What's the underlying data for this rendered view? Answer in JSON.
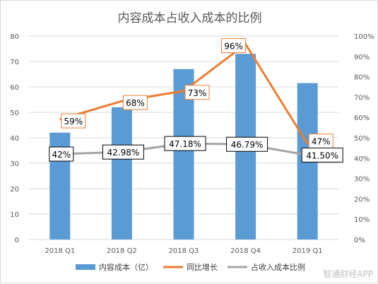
{
  "chart_data": {
    "type": "bar",
    "title": "内容成本占收入成本的比例",
    "categories": [
      "2018 Q1",
      "2018 Q2",
      "2018 Q3",
      "2018 Q4",
      "2019 Q1"
    ],
    "y_left": {
      "ticks": [
        "0",
        "10",
        "20",
        "30",
        "40",
        "50",
        "60",
        "70",
        "80"
      ],
      "ylim": [
        0,
        80
      ]
    },
    "y_right": {
      "ticks": [
        "0%",
        "10%",
        "20%",
        "30%",
        "40%",
        "50%",
        "60%",
        "70%",
        "80%",
        "90%",
        "100%"
      ],
      "ylim": [
        0,
        100
      ]
    },
    "series": [
      {
        "name": "内容成本（亿）",
        "type": "bar",
        "axis": "left",
        "color": "#5b9bd5",
        "values": [
          42,
          52,
          67,
          73,
          61.5
        ]
      },
      {
        "name": "同比增长",
        "type": "line",
        "axis": "right",
        "color": "#ed7d31",
        "values": [
          59,
          68,
          73,
          96,
          47
        ],
        "labels": [
          "59%",
          "68%",
          "73%",
          "96%",
          "47%"
        ]
      },
      {
        "name": "占收入成本比例",
        "type": "line",
        "axis": "right",
        "color": "#a5a5a5",
        "values": [
          42,
          42.98,
          47.18,
          46.79,
          41.5
        ],
        "labels": [
          "42%",
          "42.98%",
          "47.18%",
          "46.79%",
          "41.50%"
        ]
      }
    ],
    "legend_position": "bottom",
    "grid": true
  },
  "watermark": "智通财经APP"
}
